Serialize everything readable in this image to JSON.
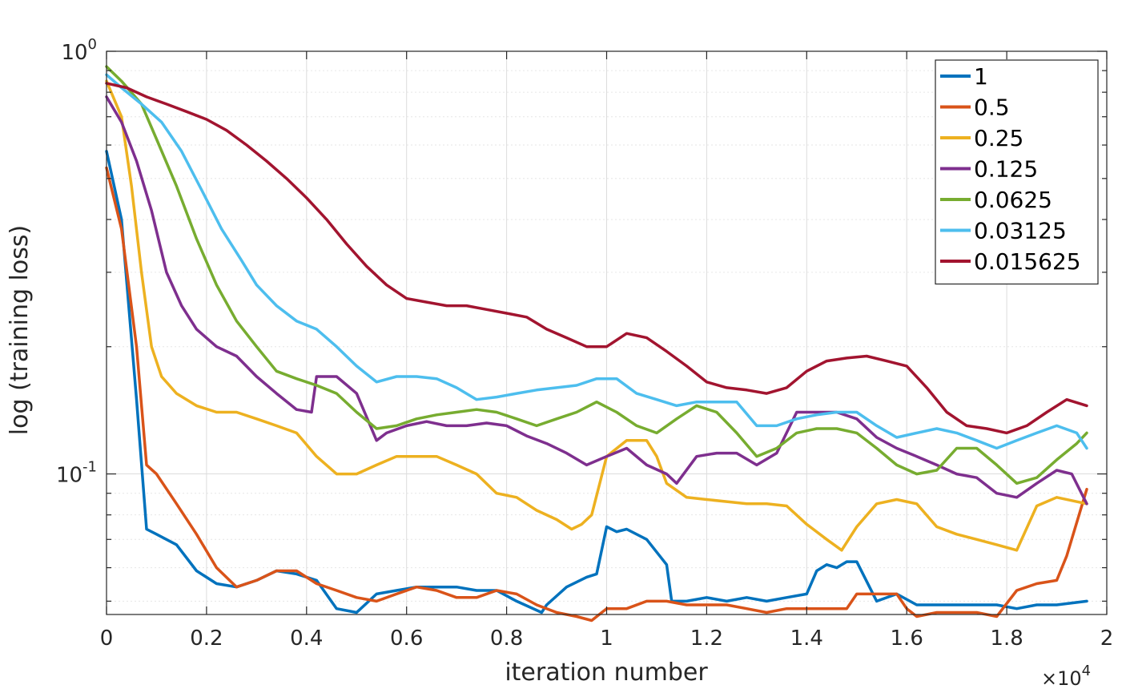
{
  "chart_data": {
    "type": "line",
    "title": "",
    "xlabel": "iteration number",
    "ylabel": "log (training loss)",
    "x_exponent_base": "×10",
    "x_exponent_power": "4",
    "xlim": [
      0,
      20000
    ],
    "ylim": [
      0.0465,
      1.0
    ],
    "yscale": "log",
    "grid": true,
    "legend_position": "top-right",
    "x_ticks": [
      0,
      2000,
      4000,
      6000,
      8000,
      10000,
      12000,
      14000,
      16000,
      18000,
      20000
    ],
    "x_tick_labels": [
      "0",
      "0.2",
      "0.4",
      "0.6",
      "0.8",
      "1",
      "1.2",
      "1.4",
      "1.6",
      "1.8",
      "2"
    ],
    "y_ticks": [
      {
        "value": 0.1,
        "base": "10",
        "exp": "-1"
      },
      {
        "value": 1.0,
        "base": "10",
        "exp": "0"
      }
    ],
    "series": [
      {
        "name": "1",
        "color": "#0072BD",
        "x": [
          0,
          300,
          600,
          800,
          1000,
          1400,
          1800,
          2200,
          2600,
          3000,
          3400,
          3800,
          4200,
          4600,
          5000,
          5400,
          5800,
          6200,
          6600,
          7000,
          7400,
          7800,
          8200,
          8700,
          8800,
          9200,
          9600,
          9800,
          10000,
          10200,
          10400,
          10800,
          11200,
          11300,
          11600,
          12000,
          12400,
          12800,
          13200,
          13600,
          14000,
          14200,
          14400,
          14600,
          14800,
          15000,
          15400,
          15800,
          16200,
          16600,
          17000,
          17400,
          17800,
          18200,
          18600,
          19000,
          19600
        ],
        "values": [
          0.58,
          0.4,
          0.15,
          0.074,
          0.072,
          0.068,
          0.059,
          0.055,
          0.054,
          0.056,
          0.059,
          0.058,
          0.056,
          0.048,
          0.047,
          0.052,
          0.053,
          0.054,
          0.054,
          0.054,
          0.053,
          0.053,
          0.05,
          0.047,
          0.049,
          0.054,
          0.057,
          0.058,
          0.075,
          0.073,
          0.074,
          0.07,
          0.061,
          0.05,
          0.05,
          0.051,
          0.05,
          0.051,
          0.05,
          0.051,
          0.052,
          0.059,
          0.061,
          0.06,
          0.062,
          0.062,
          0.05,
          0.052,
          0.049,
          0.049,
          0.049,
          0.049,
          0.049,
          0.048,
          0.049,
          0.049,
          0.05
        ]
      },
      {
        "name": "0.5",
        "color": "#D95319",
        "x": [
          0,
          300,
          600,
          800,
          1000,
          1400,
          1800,
          2200,
          2600,
          3000,
          3400,
          3800,
          4200,
          4600,
          5000,
          5400,
          5800,
          6200,
          6600,
          7000,
          7400,
          7800,
          8200,
          8600,
          9000,
          9400,
          9700,
          10000,
          10400,
          10800,
          11200,
          11600,
          12000,
          12400,
          12800,
          13200,
          13600,
          14000,
          14400,
          14800,
          15000,
          15400,
          15800,
          16000,
          16200,
          16600,
          17000,
          17400,
          17800,
          18200,
          18600,
          19000,
          19200,
          19600
        ],
        "values": [
          0.53,
          0.38,
          0.2,
          0.105,
          0.1,
          0.085,
          0.072,
          0.06,
          0.054,
          0.056,
          0.059,
          0.059,
          0.055,
          0.053,
          0.051,
          0.05,
          0.052,
          0.054,
          0.053,
          0.051,
          0.051,
          0.053,
          0.052,
          0.049,
          0.047,
          0.046,
          0.045,
          0.048,
          0.048,
          0.05,
          0.05,
          0.049,
          0.049,
          0.049,
          0.048,
          0.047,
          0.048,
          0.048,
          0.048,
          0.048,
          0.052,
          0.052,
          0.052,
          0.048,
          0.046,
          0.047,
          0.047,
          0.047,
          0.046,
          0.053,
          0.055,
          0.056,
          0.064,
          0.092
        ]
      },
      {
        "name": "0.25",
        "color": "#EDB120",
        "x": [
          0,
          300,
          500,
          700,
          900,
          1100,
          1400,
          1800,
          2200,
          2600,
          3000,
          3400,
          3800,
          4200,
          4600,
          5000,
          5400,
          5800,
          6200,
          6600,
          7000,
          7400,
          7800,
          8200,
          8600,
          9000,
          9300,
          9500,
          9700,
          10000,
          10400,
          10800,
          11000,
          11200,
          11600,
          12000,
          12400,
          12800,
          13200,
          13600,
          14000,
          14400,
          14700,
          15000,
          15400,
          15800,
          16200,
          16600,
          17000,
          17400,
          17800,
          18200,
          18600,
          19000,
          19600
        ],
        "values": [
          0.85,
          0.7,
          0.48,
          0.3,
          0.2,
          0.17,
          0.155,
          0.145,
          0.14,
          0.14,
          0.135,
          0.13,
          0.125,
          0.11,
          0.1,
          0.1,
          0.105,
          0.11,
          0.11,
          0.11,
          0.105,
          0.1,
          0.09,
          0.088,
          0.082,
          0.078,
          0.074,
          0.076,
          0.08,
          0.11,
          0.12,
          0.12,
          0.11,
          0.095,
          0.088,
          0.087,
          0.086,
          0.085,
          0.085,
          0.084,
          0.076,
          0.07,
          0.066,
          0.075,
          0.085,
          0.087,
          0.085,
          0.075,
          0.072,
          0.07,
          0.068,
          0.066,
          0.084,
          0.088,
          0.085
        ]
      },
      {
        "name": "0.125",
        "color": "#7E2F8E",
        "x": [
          0,
          300,
          600,
          900,
          1200,
          1500,
          1800,
          2200,
          2600,
          3000,
          3400,
          3800,
          4100,
          4200,
          4600,
          5000,
          5400,
          5600,
          6000,
          6400,
          6800,
          7200,
          7600,
          8000,
          8400,
          8800,
          9200,
          9600,
          10000,
          10400,
          10800,
          11200,
          11400,
          11800,
          12200,
          12600,
          13000,
          13400,
          13800,
          14200,
          14600,
          15000,
          15400,
          15800,
          16200,
          16600,
          17000,
          17400,
          17800,
          18200,
          18600,
          19000,
          19300,
          19600
        ],
        "values": [
          0.78,
          0.68,
          0.55,
          0.42,
          0.3,
          0.25,
          0.22,
          0.2,
          0.19,
          0.17,
          0.155,
          0.142,
          0.14,
          0.17,
          0.17,
          0.155,
          0.12,
          0.125,
          0.13,
          0.133,
          0.13,
          0.13,
          0.132,
          0.13,
          0.123,
          0.118,
          0.112,
          0.105,
          0.11,
          0.115,
          0.105,
          0.1,
          0.095,
          0.11,
          0.112,
          0.112,
          0.105,
          0.112,
          0.14,
          0.14,
          0.14,
          0.135,
          0.122,
          0.115,
          0.11,
          0.105,
          0.1,
          0.098,
          0.09,
          0.088,
          0.095,
          0.102,
          0.1,
          0.085
        ]
      },
      {
        "name": "0.0625",
        "color": "#77AC30",
        "x": [
          0,
          300,
          700,
          1000,
          1400,
          1800,
          2200,
          2600,
          3000,
          3400,
          3800,
          4200,
          4600,
          5000,
          5400,
          5800,
          6200,
          6600,
          7000,
          7400,
          7800,
          8200,
          8600,
          9000,
          9400,
          9800,
          10200,
          10600,
          11000,
          11400,
          11800,
          12200,
          12600,
          13000,
          13400,
          13800,
          14200,
          14600,
          15000,
          15400,
          15800,
          16200,
          16600,
          17000,
          17400,
          17800,
          18200,
          18600,
          19000,
          19400,
          19600
        ],
        "values": [
          0.92,
          0.85,
          0.75,
          0.62,
          0.48,
          0.36,
          0.28,
          0.23,
          0.2,
          0.175,
          0.168,
          0.162,
          0.155,
          0.14,
          0.128,
          0.13,
          0.135,
          0.138,
          0.14,
          0.142,
          0.14,
          0.135,
          0.13,
          0.135,
          0.14,
          0.148,
          0.14,
          0.13,
          0.125,
          0.135,
          0.145,
          0.14,
          0.125,
          0.11,
          0.115,
          0.125,
          0.128,
          0.128,
          0.125,
          0.115,
          0.105,
          0.1,
          0.102,
          0.115,
          0.115,
          0.105,
          0.095,
          0.098,
          0.108,
          0.118,
          0.125
        ]
      },
      {
        "name": "0.03125",
        "color": "#4DBEEE",
        "x": [
          0,
          300,
          700,
          1100,
          1500,
          1900,
          2300,
          2700,
          3000,
          3400,
          3800,
          4200,
          4600,
          5000,
          5400,
          5800,
          6200,
          6600,
          7000,
          7400,
          7800,
          8200,
          8600,
          9000,
          9400,
          9800,
          10200,
          10600,
          11000,
          11400,
          11800,
          12200,
          12600,
          13000,
          13400,
          13800,
          14200,
          14600,
          15000,
          15400,
          15800,
          16200,
          16600,
          17000,
          17400,
          17800,
          18200,
          18600,
          19000,
          19400,
          19600
        ],
        "values": [
          0.88,
          0.82,
          0.75,
          0.68,
          0.58,
          0.47,
          0.38,
          0.32,
          0.28,
          0.25,
          0.23,
          0.22,
          0.2,
          0.18,
          0.165,
          0.17,
          0.17,
          0.168,
          0.16,
          0.15,
          0.152,
          0.155,
          0.158,
          0.16,
          0.162,
          0.168,
          0.168,
          0.155,
          0.15,
          0.145,
          0.148,
          0.148,
          0.148,
          0.13,
          0.13,
          0.135,
          0.138,
          0.14,
          0.14,
          0.13,
          0.122,
          0.125,
          0.128,
          0.125,
          0.12,
          0.115,
          0.12,
          0.125,
          0.13,
          0.125,
          0.115
        ]
      },
      {
        "name": "0.015625",
        "color": "#A2142F",
        "x": [
          0,
          400,
          800,
          1200,
          1600,
          2000,
          2400,
          2800,
          3200,
          3600,
          4000,
          4400,
          4800,
          5200,
          5600,
          6000,
          6400,
          6800,
          7200,
          7600,
          8000,
          8400,
          8800,
          9200,
          9600,
          10000,
          10400,
          10800,
          11200,
          11600,
          12000,
          12400,
          12800,
          13200,
          13600,
          14000,
          14400,
          14800,
          15200,
          15600,
          16000,
          16400,
          16800,
          17200,
          17600,
          18000,
          18400,
          18800,
          19200,
          19600
        ],
        "values": [
          0.84,
          0.82,
          0.78,
          0.75,
          0.72,
          0.69,
          0.65,
          0.6,
          0.55,
          0.5,
          0.45,
          0.4,
          0.35,
          0.31,
          0.28,
          0.26,
          0.255,
          0.25,
          0.25,
          0.245,
          0.24,
          0.235,
          0.22,
          0.21,
          0.2,
          0.2,
          0.215,
          0.21,
          0.195,
          0.18,
          0.165,
          0.16,
          0.158,
          0.155,
          0.16,
          0.175,
          0.185,
          0.188,
          0.19,
          0.185,
          0.18,
          0.16,
          0.14,
          0.13,
          0.128,
          0.125,
          0.13,
          0.14,
          0.15,
          0.145
        ]
      }
    ]
  }
}
